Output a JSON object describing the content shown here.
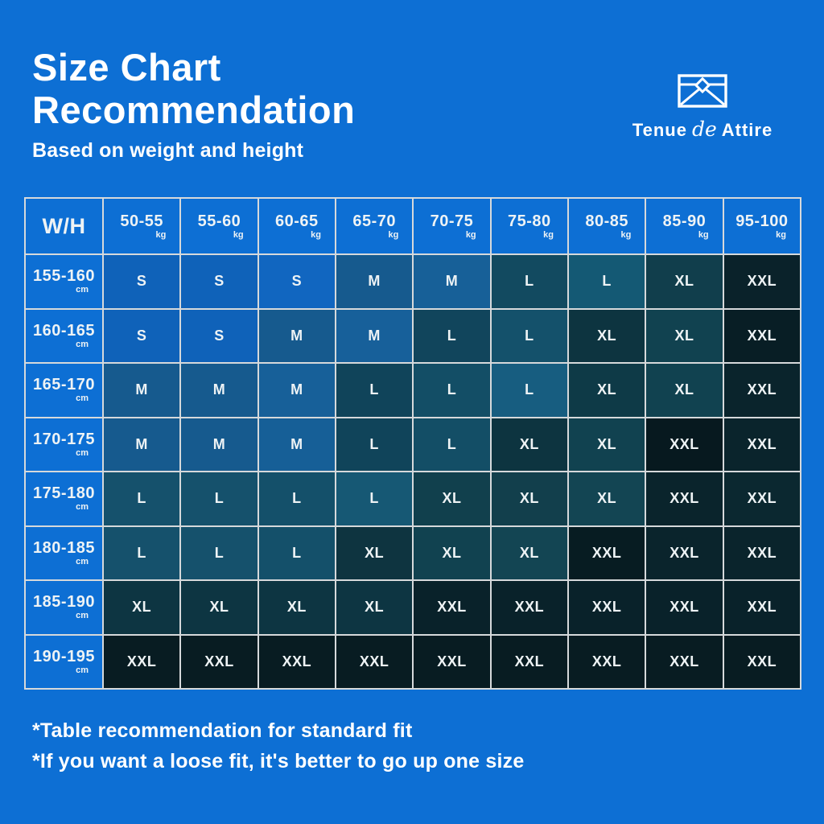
{
  "page": {
    "background": "#0d6fd4",
    "border_color": "#d6d9db",
    "text_color": "#ffffff"
  },
  "header": {
    "title_line1": "Size Chart",
    "title_line2": "Recommendation",
    "subtitle": "Based on weight and height"
  },
  "brand": {
    "name_left": "Tenue",
    "name_script": "de",
    "name_right": "Attire",
    "icon": "mountain-frame-icon"
  },
  "table": {
    "corner_label": "W/H",
    "weight_unit": "kg",
    "height_unit": "cm",
    "columns": [
      "50-55",
      "55-60",
      "60-65",
      "65-70",
      "70-75",
      "75-80",
      "80-85",
      "85-90",
      "95-100"
    ],
    "row_labels": [
      "155-160",
      "160-165",
      "165-170",
      "170-175",
      "175-180",
      "180-185",
      "185-190",
      "190-195"
    ]
  },
  "chart_data": {
    "type": "table",
    "title": "Size Chart Recommendation",
    "subtitle": "Based on weight and height",
    "x_label": "Weight (kg)",
    "y_label": "Height (cm)",
    "x_categories": [
      "50-55",
      "55-60",
      "60-65",
      "65-70",
      "70-75",
      "75-80",
      "80-85",
      "85-90",
      "95-100"
    ],
    "y_categories": [
      "155-160",
      "160-165",
      "165-170",
      "170-175",
      "175-180",
      "180-185",
      "185-190",
      "190-195"
    ],
    "values": [
      [
        "S",
        "S",
        "S",
        "M",
        "M",
        "L",
        "L",
        "XL",
        "XXL"
      ],
      [
        "S",
        "S",
        "M",
        "M",
        "L",
        "L",
        "XL",
        "XL",
        "XXL"
      ],
      [
        "M",
        "M",
        "M",
        "L",
        "L",
        "L",
        "XL",
        "XL",
        "XXL"
      ],
      [
        "M",
        "M",
        "M",
        "L",
        "L",
        "XL",
        "XL",
        "XXL",
        "XXL"
      ],
      [
        "L",
        "L",
        "L",
        "L",
        "XL",
        "XL",
        "XL",
        "XXL",
        "XXL"
      ],
      [
        "L",
        "L",
        "L",
        "XL",
        "XL",
        "XL",
        "XXL",
        "XXL",
        "XXL"
      ],
      [
        "XL",
        "XL",
        "XL",
        "XL",
        "XXL",
        "XXL",
        "XXL",
        "XXL",
        "XXL"
      ],
      [
        "XXL",
        "XXL",
        "XXL",
        "XXL",
        "XXL",
        "XXL",
        "XXL",
        "XXL",
        "XXL"
      ]
    ],
    "cell_colors": [
      [
        "#0f62b9",
        "#0f62b9",
        "#1166c0",
        "#165a8e",
        "#176098",
        "#124a60",
        "#145974",
        "#113e4c",
        "#0a222a"
      ],
      [
        "#0f62b9",
        "#0f62b9",
        "#165a8e",
        "#17609a",
        "#11455c",
        "#14516b",
        "#0d3440",
        "#114250",
        "#081e25"
      ],
      [
        "#165a8e",
        "#165a8e",
        "#176099",
        "#10445a",
        "#134e66",
        "#175d80",
        "#0e3a47",
        "#114250",
        "#0a242c"
      ],
      [
        "#165a8e",
        "#165a8e",
        "#165f97",
        "#10445a",
        "#134e66",
        "#0d3440",
        "#114250",
        "#07191f",
        "#0a242c"
      ],
      [
        "#15516c",
        "#15516c",
        "#14506a",
        "#165874",
        "#11404d",
        "#123f4c",
        "#134553",
        "#0a242c",
        "#0b2830"
      ],
      [
        "#15516c",
        "#15516c",
        "#14506a",
        "#0e3440",
        "#114250",
        "#134553",
        "#071c22",
        "#0a242c",
        "#0a242c"
      ],
      [
        "#0d3542",
        "#0d3542",
        "#0d3542",
        "#0d3542",
        "#09222a",
        "#09222a",
        "#09222a",
        "#09222a",
        "#09222a"
      ],
      [
        "#081c22",
        "#081c22",
        "#081c22",
        "#081c22",
        "#081c22",
        "#081c22",
        "#081c22",
        "#081c22",
        "#081c22"
      ]
    ],
    "legend_position": "none",
    "grid": true
  },
  "footnotes": [
    "*Table recommendation for standard fit",
    "*If you want a loose fit, it's better to go up one size"
  ]
}
